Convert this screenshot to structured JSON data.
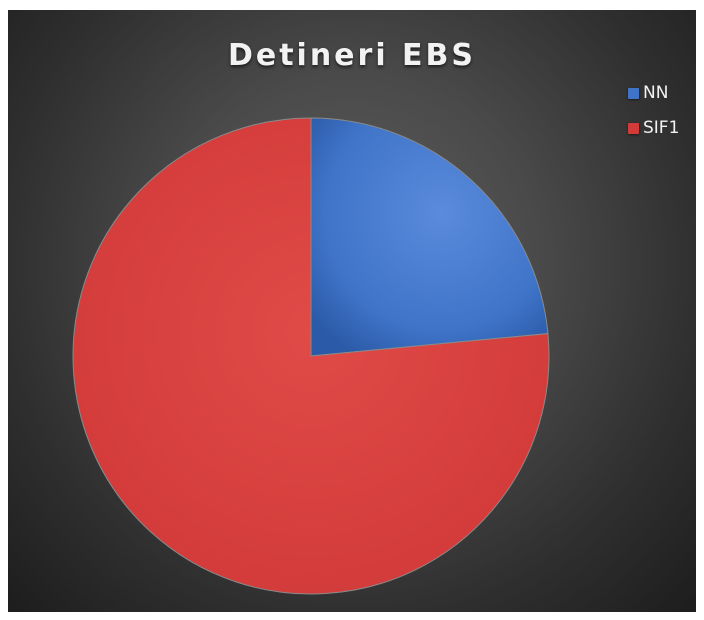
{
  "chart_data": {
    "type": "pie",
    "title": "Detineri EBS",
    "categories": [
      "NN",
      "SIF1"
    ],
    "values": [
      23.5,
      76.5
    ],
    "colors": [
      "#3f74c8",
      "#d23b39"
    ],
    "legend_position": "top-right"
  }
}
